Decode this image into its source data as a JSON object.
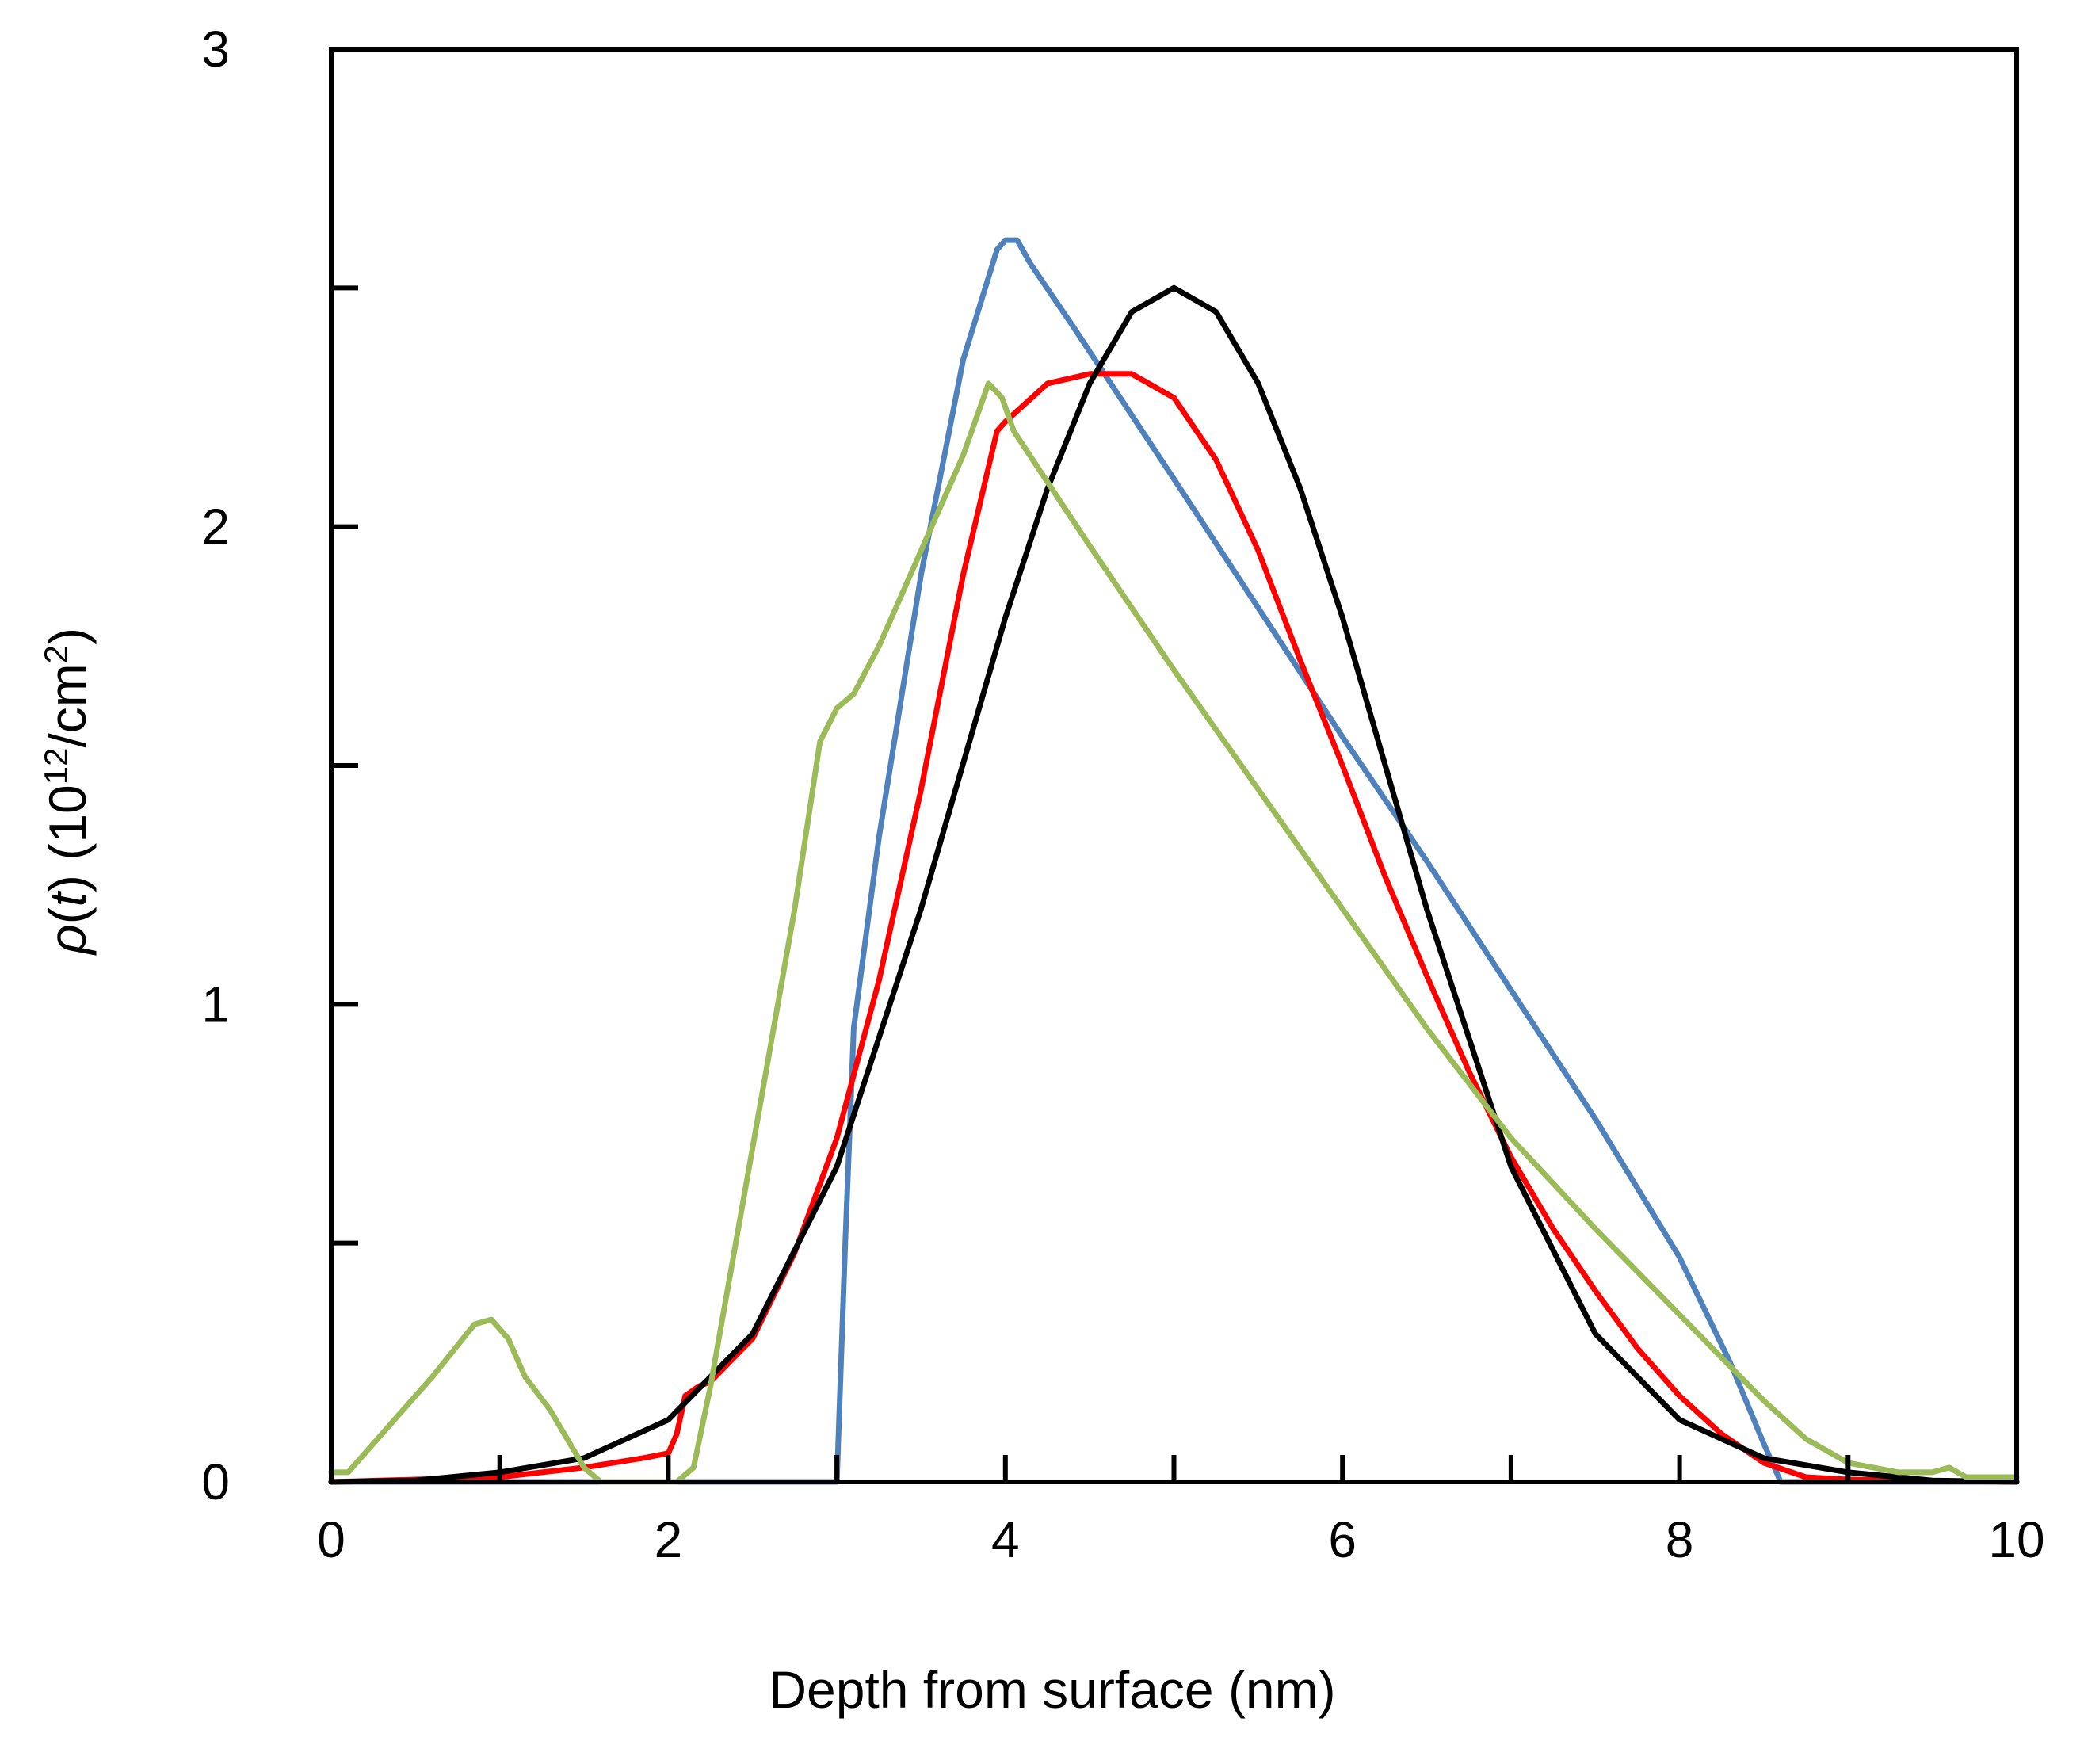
{
  "chart_data": {
    "type": "line",
    "title": "",
    "xlabel": "Depth from surface (nm)",
    "ylabel": {
      "rho": "ρ",
      "open1": "(",
      "t": "t",
      "close1": ")",
      "units_open": " (10",
      "exp1": "12",
      "units_mid": "/cm",
      "exp2": "2",
      "units_close": ")"
    },
    "xlim": [
      0,
      10
    ],
    "ylim": [
      0,
      3
    ],
    "xticks": [
      0,
      1,
      2,
      3,
      4,
      5,
      6,
      7,
      8,
      9,
      10
    ],
    "xtick_labels": [
      "0",
      "2",
      "4",
      "6",
      "8",
      "10"
    ],
    "xtick_label_values": [
      0,
      2,
      4,
      6,
      8,
      10
    ],
    "yticks": [
      0,
      0.5,
      1,
      1.5,
      2,
      2.5,
      3
    ],
    "ytick_labels": [
      "0",
      "1",
      "2",
      "3"
    ],
    "ytick_label_values": [
      0,
      1,
      2,
      3
    ],
    "grid": false,
    "legend": "none",
    "series": [
      {
        "name": "blue",
        "color": "#4f81bd",
        "points": [
          [
            0,
            0
          ],
          [
            2.95,
            0
          ],
          [
            3.0,
            0
          ],
          [
            3.05,
            0.5
          ],
          [
            3.1,
            0.95
          ],
          [
            3.25,
            1.35
          ],
          [
            3.5,
            1.9
          ],
          [
            3.75,
            2.35
          ],
          [
            3.95,
            2.58
          ],
          [
            4.0,
            2.6
          ],
          [
            4.07,
            2.6
          ],
          [
            4.15,
            2.55
          ],
          [
            4.4,
            2.42
          ],
          [
            5.0,
            2.1
          ],
          [
            5.5,
            1.83
          ],
          [
            6.0,
            1.56
          ],
          [
            6.5,
            1.3
          ],
          [
            7.0,
            1.03
          ],
          [
            7.5,
            0.76
          ],
          [
            8.0,
            0.47
          ],
          [
            8.3,
            0.25
          ],
          [
            8.5,
            0.08
          ],
          [
            8.6,
            0.0
          ],
          [
            10,
            0
          ]
        ]
      },
      {
        "name": "red",
        "color": "#ff0000",
        "points": [
          [
            0,
            0
          ],
          [
            0.5,
            0.005
          ],
          [
            1.0,
            0.01
          ],
          [
            1.5,
            0.03
          ],
          [
            1.85,
            0.05
          ],
          [
            2.0,
            0.06
          ],
          [
            2.05,
            0.1
          ],
          [
            2.1,
            0.18
          ],
          [
            2.18,
            0.2
          ],
          [
            2.25,
            0.21
          ],
          [
            2.5,
            0.3
          ],
          [
            2.75,
            0.48
          ],
          [
            3.0,
            0.72
          ],
          [
            3.25,
            1.05
          ],
          [
            3.5,
            1.45
          ],
          [
            3.75,
            1.9
          ],
          [
            3.95,
            2.2
          ],
          [
            4.0,
            2.22
          ],
          [
            4.25,
            2.3
          ],
          [
            4.5,
            2.32
          ],
          [
            4.75,
            2.32
          ],
          [
            5.0,
            2.27
          ],
          [
            5.25,
            2.14
          ],
          [
            5.5,
            1.95
          ],
          [
            5.75,
            1.72
          ],
          [
            6.0,
            1.5
          ],
          [
            6.25,
            1.27
          ],
          [
            6.5,
            1.06
          ],
          [
            6.75,
            0.86
          ],
          [
            7.0,
            0.68
          ],
          [
            7.25,
            0.53
          ],
          [
            7.5,
            0.4
          ],
          [
            7.75,
            0.28
          ],
          [
            8.0,
            0.18
          ],
          [
            8.25,
            0.1
          ],
          [
            8.5,
            0.04
          ],
          [
            8.75,
            0.01
          ],
          [
            9.0,
            0.005
          ],
          [
            10,
            0
          ]
        ]
      },
      {
        "name": "black",
        "color": "#000000",
        "points": [
          [
            0,
            0
          ],
          [
            0.5,
            0.003
          ],
          [
            1.0,
            0.02
          ],
          [
            1.5,
            0.05
          ],
          [
            2.0,
            0.13
          ],
          [
            2.5,
            0.31
          ],
          [
            3.0,
            0.66
          ],
          [
            3.5,
            1.2
          ],
          [
            4.0,
            1.81
          ],
          [
            4.25,
            2.08
          ],
          [
            4.5,
            2.3
          ],
          [
            4.75,
            2.45
          ],
          [
            5.0,
            2.5
          ],
          [
            5.25,
            2.45
          ],
          [
            5.5,
            2.3
          ],
          [
            5.75,
            2.08
          ],
          [
            6.0,
            1.81
          ],
          [
            6.5,
            1.2
          ],
          [
            7.0,
            0.66
          ],
          [
            7.5,
            0.31
          ],
          [
            8.0,
            0.13
          ],
          [
            8.5,
            0.05
          ],
          [
            9.0,
            0.02
          ],
          [
            9.5,
            0.003
          ],
          [
            10,
            0
          ]
        ]
      },
      {
        "name": "green",
        "color": "#9bbb59",
        "points": [
          [
            0,
            0.02
          ],
          [
            0.1,
            0.02
          ],
          [
            0.3,
            0.1
          ],
          [
            0.6,
            0.22
          ],
          [
            0.85,
            0.33
          ],
          [
            0.95,
            0.34
          ],
          [
            1.05,
            0.3
          ],
          [
            1.15,
            0.22
          ],
          [
            1.3,
            0.15
          ],
          [
            1.5,
            0.03
          ],
          [
            1.6,
            0.0
          ],
          [
            2.05,
            0.0
          ],
          [
            2.15,
            0.03
          ],
          [
            2.25,
            0.2
          ],
          [
            2.5,
            0.7
          ],
          [
            2.75,
            1.2
          ],
          [
            2.9,
            1.55
          ],
          [
            3.0,
            1.62
          ],
          [
            3.1,
            1.65
          ],
          [
            3.25,
            1.75
          ],
          [
            3.5,
            1.95
          ],
          [
            3.75,
            2.15
          ],
          [
            3.9,
            2.3
          ],
          [
            3.98,
            2.27
          ],
          [
            4.05,
            2.2
          ],
          [
            4.2,
            2.12
          ],
          [
            4.5,
            1.96
          ],
          [
            5.0,
            1.7
          ],
          [
            5.5,
            1.45
          ],
          [
            6.0,
            1.2
          ],
          [
            6.5,
            0.95
          ],
          [
            7.0,
            0.72
          ],
          [
            7.5,
            0.53
          ],
          [
            8.0,
            0.35
          ],
          [
            8.5,
            0.17
          ],
          [
            8.75,
            0.09
          ],
          [
            9.0,
            0.04
          ],
          [
            9.3,
            0.02
          ],
          [
            9.5,
            0.02
          ],
          [
            9.6,
            0.03
          ],
          [
            9.7,
            0.01
          ],
          [
            10,
            0.01
          ]
        ]
      }
    ]
  }
}
